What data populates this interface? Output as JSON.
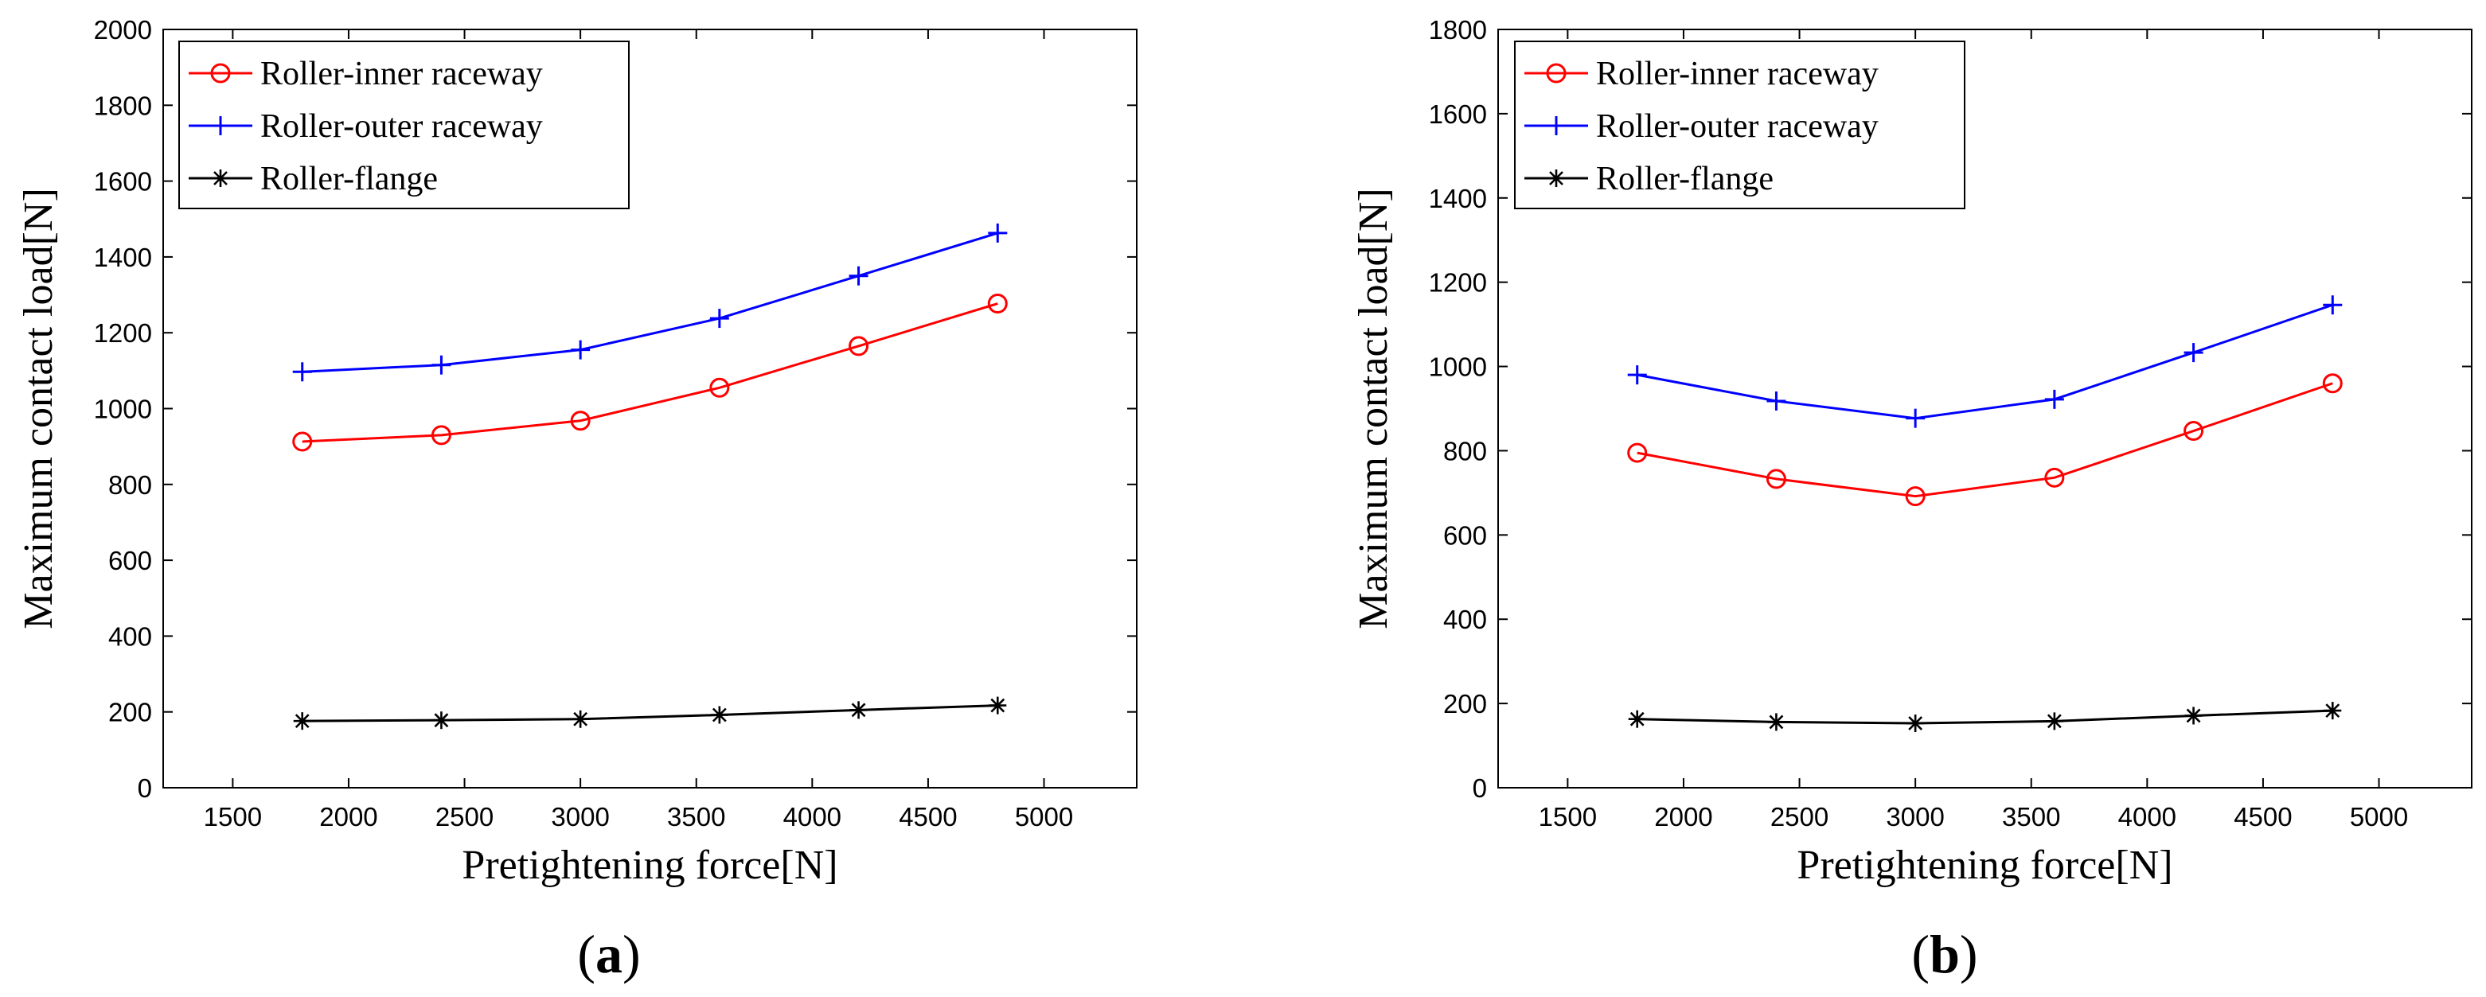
{
  "chart_data": [
    {
      "type": "line",
      "panel_label": "a",
      "title": "",
      "xlabel": "Pretightening force[N]",
      "ylabel": "Maximum contact load[N]",
      "xlim": [
        1200,
        5400
      ],
      "ylim": [
        0,
        2000
      ],
      "xticks": [
        1500,
        2000,
        2500,
        3000,
        3500,
        4000,
        4500,
        5000
      ],
      "yticks": [
        0,
        200,
        400,
        600,
        800,
        1000,
        1200,
        1400,
        1600,
        1800,
        2000
      ],
      "grid": false,
      "legend_position": "top-left",
      "x": [
        1800,
        2400,
        3000,
        3600,
        4200,
        4800
      ],
      "series": [
        {
          "name": "Roller-inner raceway",
          "color": "#ff0000",
          "marker": "circle",
          "values": [
            913,
            930,
            968,
            1055,
            1165,
            1277
          ]
        },
        {
          "name": "Roller-outer raceway",
          "color": "#0000ff",
          "marker": "plus",
          "values": [
            1097,
            1115,
            1155,
            1238,
            1350,
            1463
          ]
        },
        {
          "name": "Roller-flange",
          "color": "#000000",
          "marker": "asterisk",
          "values": [
            176,
            178,
            181,
            192,
            205,
            217
          ]
        }
      ]
    },
    {
      "type": "line",
      "panel_label": "b",
      "title": "",
      "xlabel": "Pretightening force[N]",
      "ylabel": "Maximum contact load[N]",
      "xlim": [
        1200,
        5400
      ],
      "ylim": [
        0,
        1800
      ],
      "xticks": [
        1500,
        2000,
        2500,
        3000,
        3500,
        4000,
        4500,
        5000
      ],
      "yticks": [
        0,
        200,
        400,
        600,
        800,
        1000,
        1200,
        1400,
        1600,
        1800
      ],
      "grid": false,
      "legend_position": "top-left",
      "x": [
        1800,
        2400,
        3000,
        3600,
        4200,
        4800
      ],
      "series": [
        {
          "name": "Roller-inner raceway",
          "color": "#ff0000",
          "marker": "circle",
          "values": [
            795,
            733,
            692,
            736,
            847,
            960
          ]
        },
        {
          "name": "Roller-outer raceway",
          "color": "#0000ff",
          "marker": "plus",
          "values": [
            980,
            918,
            877,
            922,
            1033,
            1146
          ]
        },
        {
          "name": "Roller-flange",
          "color": "#000000",
          "marker": "asterisk",
          "values": [
            163,
            156,
            153,
            158,
            171,
            183
          ]
        }
      ]
    }
  ]
}
